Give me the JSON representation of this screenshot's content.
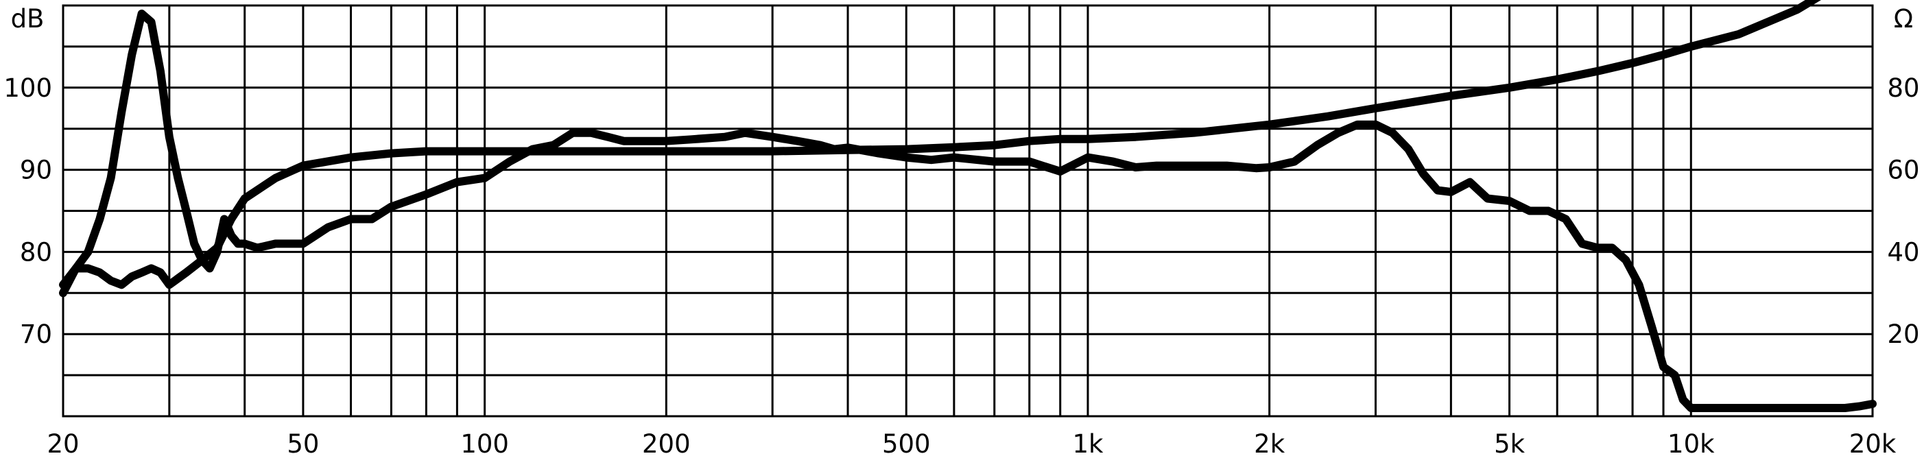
{
  "chart_data": {
    "type": "line",
    "title": "",
    "x_scale": "log",
    "xlim": [
      20,
      20000
    ],
    "grid": true,
    "legend": "none",
    "x_tick_labels": [
      {
        "value": 20,
        "label": "20"
      },
      {
        "value": 50,
        "label": "50"
      },
      {
        "value": 100,
        "label": "100"
      },
      {
        "value": 200,
        "label": "200"
      },
      {
        "value": 500,
        "label": "500"
      },
      {
        "value": 1000,
        "label": "1k"
      },
      {
        "value": 2000,
        "label": "2k"
      },
      {
        "value": 5000,
        "label": "5k"
      },
      {
        "value": 10000,
        "label": "10k"
      },
      {
        "value": 20000,
        "label": "20k"
      }
    ],
    "left_axis": {
      "unit_label": "dB",
      "ylim": [
        60,
        110
      ],
      "tick_labels": [
        {
          "value": 100,
          "label": "100"
        },
        {
          "value": 90,
          "label": "90"
        },
        {
          "value": 80,
          "label": "80"
        },
        {
          "value": 70,
          "label": "70"
        }
      ]
    },
    "right_axis": {
      "unit_label": "Ω",
      "ylim": [
        0,
        100
      ],
      "tick_labels": [
        {
          "value": 80,
          "label": "80"
        },
        {
          "value": 60,
          "label": "60"
        },
        {
          "value": 40,
          "label": "40"
        },
        {
          "value": 20,
          "label": "20"
        }
      ]
    },
    "series": [
      {
        "axis": "left",
        "color": "#000000",
        "x": [
          20,
          21,
          22,
          23,
          24,
          25,
          26,
          27,
          28,
          29,
          30,
          31,
          32,
          33,
          34,
          35,
          36,
          37,
          38,
          39,
          40,
          42,
          45,
          48,
          50,
          55,
          60,
          65,
          70,
          80,
          90,
          100,
          110,
          120,
          130,
          140,
          150,
          160,
          170,
          180,
          200,
          220,
          250,
          270,
          300,
          330,
          360,
          380,
          400,
          450,
          500,
          550,
          600,
          700,
          800,
          900,
          1000,
          1100,
          1200,
          1300,
          1500,
          1700,
          1900,
          2000,
          2200,
          2400,
          2600,
          2800,
          3000,
          3200,
          3400,
          3600,
          3800,
          4000,
          4300,
          4600,
          5000,
          5400,
          5800,
          6200,
          6600,
          7000,
          7400,
          7800,
          8200,
          8600,
          9000,
          9400,
          9700,
          10000,
          12000,
          15000,
          18000,
          19000,
          20000
        ],
        "y": [
          75,
          78,
          80,
          84,
          89,
          97,
          104,
          109,
          108,
          102,
          94,
          89,
          85,
          81,
          79,
          78,
          80,
          84,
          82,
          81,
          81,
          80.5,
          81,
          81,
          81,
          83,
          84,
          84,
          85.5,
          87,
          88.5,
          89,
          91,
          92.5,
          93,
          94.5,
          94.5,
          94,
          93.5,
          93.5,
          93.5,
          93.7,
          94,
          94.5,
          94,
          93.5,
          93,
          92.5,
          92.7,
          92,
          91.5,
          91.2,
          91.5,
          91,
          91,
          89.8,
          91.5,
          91,
          90.3,
          90.5,
          90.5,
          90.5,
          90.2,
          90.3,
          91,
          93,
          94.5,
          95.5,
          95.5,
          94.5,
          92.5,
          89.5,
          87.5,
          87.3,
          88.5,
          86.5,
          86.2,
          85,
          85,
          84,
          81,
          80.5,
          80.5,
          79,
          76,
          71,
          66,
          65,
          62,
          61,
          61,
          61,
          61,
          61.2,
          61.5
        ]
      },
      {
        "axis": "right",
        "color": "#000000",
        "x": [
          20,
          21,
          22,
          23,
          24,
          25,
          26,
          27,
          28,
          29,
          30,
          32,
          34,
          36,
          38,
          40,
          45,
          50,
          60,
          70,
          80,
          90,
          100,
          120,
          150,
          200,
          300,
          400,
          500,
          600,
          700,
          800,
          900,
          1000,
          1200,
          1500,
          2000,
          2500,
          3000,
          4000,
          5000,
          6000,
          7000,
          8000,
          9000,
          10000,
          12000,
          15000,
          18000,
          20000
        ],
        "y": [
          32,
          36,
          36,
          35,
          33,
          32,
          34,
          35,
          36,
          35,
          32,
          35,
          38,
          41,
          48,
          53,
          58,
          61,
          63,
          64,
          64.5,
          64.5,
          64.5,
          64.5,
          64.5,
          64.5,
          64.5,
          64.8,
          65,
          65.5,
          66,
          67,
          67.5,
          67.5,
          68,
          69,
          71,
          73,
          75,
          78,
          80,
          82,
          84,
          86,
          88,
          90,
          93,
          99,
          106,
          111
        ]
      }
    ]
  }
}
